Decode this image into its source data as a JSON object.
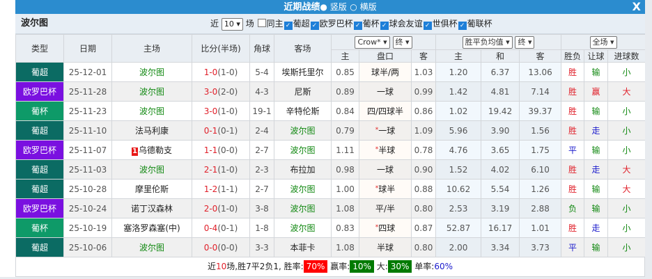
{
  "title": "近期战绩",
  "view_options": [
    "竖版",
    "横版"
  ],
  "selected_view": "竖版",
  "close_label": "X",
  "team": "波尔图",
  "filters": {
    "prefix": "近",
    "count": "10",
    "suffix": "场",
    "same_home": "同主",
    "leagues": [
      "葡超",
      "欧罗巴杯",
      "葡杯",
      "球会友谊",
      "世俱杯",
      "葡联杯"
    ]
  },
  "columns": {
    "type": "类型",
    "date": "日期",
    "home": "主场",
    "score": "比分(半场)",
    "corner": "角球",
    "away": "客场",
    "handicap_company": "Crow*",
    "handicap_stage": "终",
    "euro_select": "胜平负均值",
    "euro_stage": "终",
    "scope": "全场",
    "sub": [
      "主",
      "盘口",
      "客",
      "主",
      "和",
      "客",
      "胜负",
      "让球",
      "进球数"
    ]
  },
  "type_colors": {
    "葡超": "#0b6b63",
    "欧罗巴杯": "#7a10e0",
    "葡杯": "#0e9a68"
  },
  "result_colors": {
    "胜": "#e0202a",
    "平": "#1a1acc",
    "负": "#118811",
    "赢": "#e0202a",
    "输": "#118811",
    "走": "#1a1acc",
    "大": "#e0202a",
    "小": "#118811"
  },
  "rows": [
    {
      "type": "葡超",
      "date": "25-12-01",
      "home": "波尔图",
      "home_rank": "",
      "score": "1-0",
      "half": "(1-0)",
      "corner": "5-4",
      "away": "埃斯托里尔",
      "h1": "0.85",
      "hc": "球半/两",
      "star": false,
      "h2": "1.03",
      "e1": "1.20",
      "e2": "6.37",
      "e3": "13.06",
      "wdl": "胜",
      "ah": "输",
      "ou": "小"
    },
    {
      "type": "欧罗巴杯",
      "date": "25-11-28",
      "home": "波尔图",
      "home_rank": "",
      "score": "3-0",
      "half": "(2-0)",
      "corner": "4-3",
      "away": "尼斯",
      "h1": "0.89",
      "hc": "一球",
      "star": false,
      "h2": "0.99",
      "e1": "1.42",
      "e2": "4.81",
      "e3": "7.14",
      "wdl": "胜",
      "ah": "赢",
      "ou": "大"
    },
    {
      "type": "葡杯",
      "date": "25-11-23",
      "home": "波尔图",
      "home_rank": "",
      "score": "3-0",
      "half": "(1-0)",
      "corner": "19-1",
      "away": "辛特伦斯",
      "h1": "0.84",
      "hc": "四/四球半",
      "star": false,
      "h2": "0.86",
      "e1": "1.02",
      "e2": "19.42",
      "e3": "39.37",
      "wdl": "胜",
      "ah": "输",
      "ou": "小"
    },
    {
      "type": "葡超",
      "date": "25-11-10",
      "home": "法马利康",
      "home_rank": "",
      "score": "0-1",
      "half": "(0-1)",
      "corner": "2-4",
      "away": "波尔图",
      "h1": "0.79",
      "hc": "一球",
      "star": true,
      "h2": "1.09",
      "e1": "5.96",
      "e2": "3.90",
      "e3": "1.56",
      "wdl": "胜",
      "ah": "走",
      "ou": "小"
    },
    {
      "type": "欧罗巴杯",
      "date": "25-11-07",
      "home": "乌德勒支",
      "home_rank": "1",
      "score": "1-1",
      "half": "(0-0)",
      "corner": "2-7",
      "away": "波尔图",
      "h1": "1.11",
      "hc": "半球",
      "star": true,
      "h2": "0.78",
      "e1": "4.76",
      "e2": "3.65",
      "e3": "1.75",
      "wdl": "平",
      "ah": "输",
      "ou": "小"
    },
    {
      "type": "葡超",
      "date": "25-11-03",
      "home": "波尔图",
      "home_rank": "",
      "score": "2-1",
      "half": "(1-0)",
      "corner": "2-3",
      "away": "布拉加",
      "h1": "0.98",
      "hc": "一球",
      "star": false,
      "h2": "0.90",
      "e1": "1.52",
      "e2": "4.02",
      "e3": "6.10",
      "wdl": "胜",
      "ah": "走",
      "ou": "大"
    },
    {
      "type": "葡超",
      "date": "25-10-28",
      "home": "摩里伦斯",
      "home_rank": "",
      "score": "1-2",
      "half": "(1-1)",
      "corner": "2-7",
      "away": "波尔图",
      "h1": "1.00",
      "hc": "球半",
      "star": true,
      "h2": "0.88",
      "e1": "10.62",
      "e2": "5.54",
      "e3": "1.26",
      "wdl": "胜",
      "ah": "输",
      "ou": "大"
    },
    {
      "type": "欧罗巴杯",
      "date": "25-10-24",
      "home": "诺丁汉森林",
      "home_rank": "",
      "score": "2-0",
      "half": "(1-0)",
      "corner": "3-8",
      "away": "波尔图",
      "h1": "1.08",
      "hc": "平/半",
      "star": false,
      "h2": "0.80",
      "e1": "2.53",
      "e2": "3.19",
      "e3": "2.88",
      "wdl": "负",
      "ah": "输",
      "ou": "小"
    },
    {
      "type": "葡杯",
      "date": "25-10-19",
      "home": "塞洛罗森塞(中)",
      "home_rank": "",
      "score": "0-4",
      "half": "(0-1)",
      "corner": "1-8",
      "away": "波尔图",
      "h1": "0.83",
      "hc": "四球",
      "star": true,
      "h2": "0.87",
      "e1": "52.87",
      "e2": "16.17",
      "e3": "1.01",
      "wdl": "胜",
      "ah": "走",
      "ou": "小"
    },
    {
      "type": "葡超",
      "date": "25-10-06",
      "home": "波尔图",
      "home_rank": "",
      "score": "0-0",
      "half": "(0-0)",
      "corner": "3-3",
      "away": "本菲卡",
      "h1": "1.08",
      "hc": "半球",
      "star": false,
      "h2": "0.80",
      "e1": "2.00",
      "e2": "3.34",
      "e3": "3.73",
      "wdl": "平",
      "ah": "输",
      "ou": "小"
    }
  ],
  "summary": {
    "p1": "近",
    "n": "10",
    "p2": "场,胜7平2负1, 胜率:",
    "win_rate": "70%",
    "ah_label": "赢率:",
    "ah_rate": "10%",
    "ou_label": "大:",
    "ou_rate": "30%",
    "odd_label": "单率:",
    "odd_rate": "60%"
  }
}
